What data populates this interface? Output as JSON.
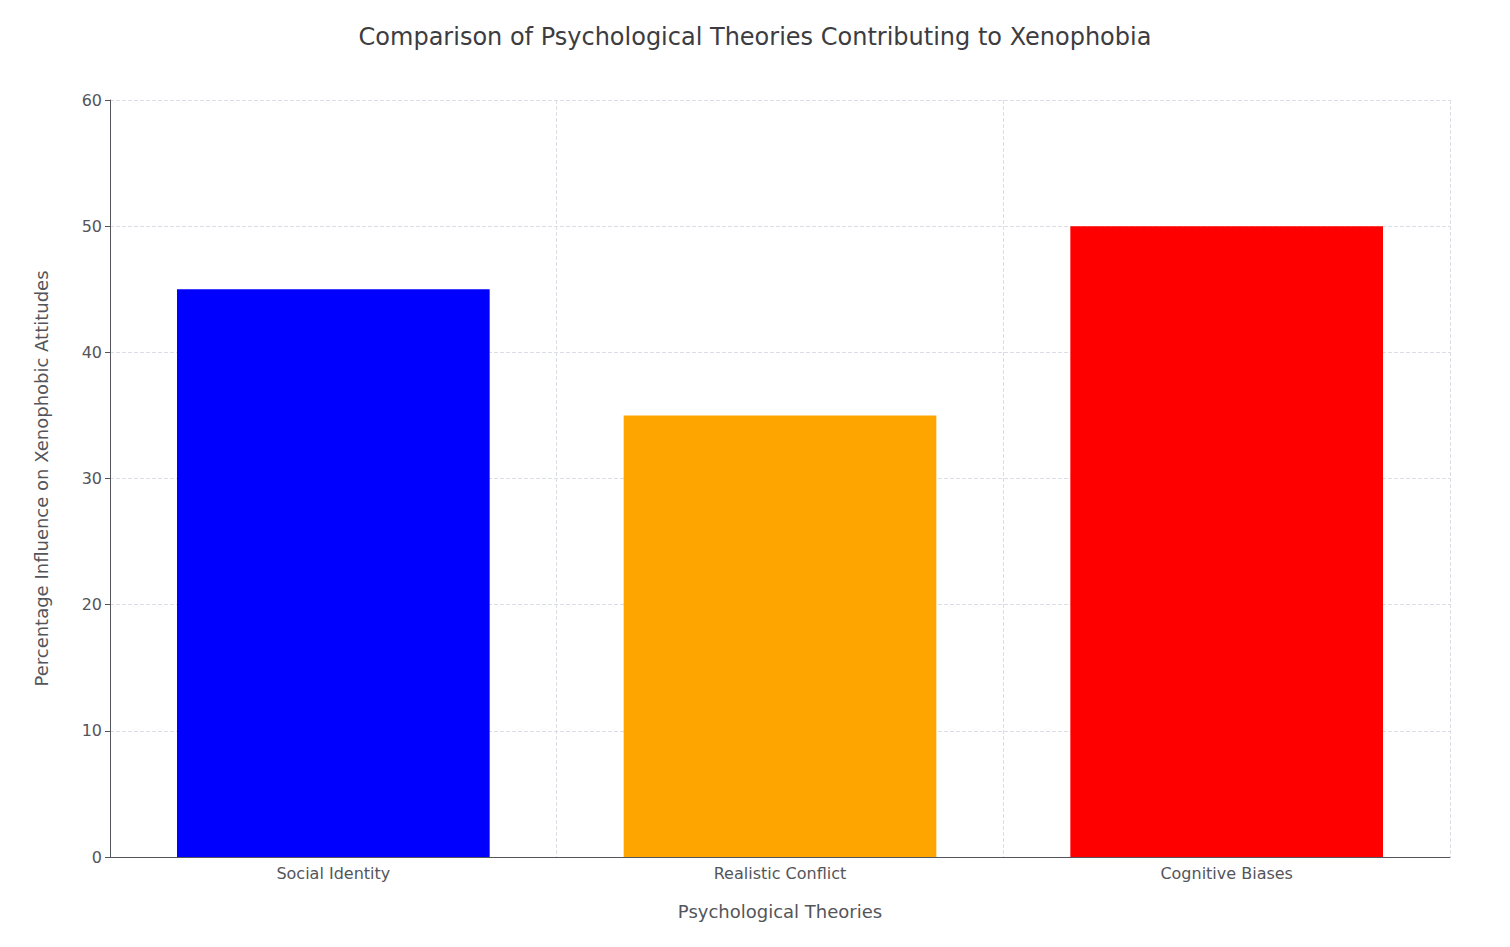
{
  "chart_data": {
    "type": "bar",
    "title": "Comparison of Psychological Theories Contributing to Xenophobia",
    "xlabel": "Psychological Theories",
    "ylabel": "Percentage Influence on Xenophobic Attitudes",
    "categories": [
      "Social Identity",
      "Realistic Conflict",
      "Cognitive Biases"
    ],
    "values": [
      45,
      35,
      50
    ],
    "colors": [
      "#0000ff",
      "#ffa500",
      "#ff0000"
    ],
    "ylim": [
      0,
      60
    ],
    "yticks": [
      0,
      10,
      20,
      30,
      40,
      50,
      60
    ],
    "grid": true
  }
}
